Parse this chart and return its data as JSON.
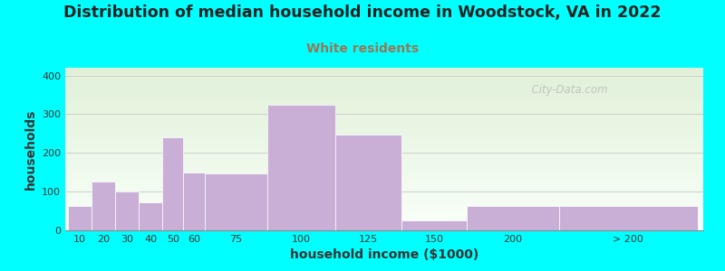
{
  "title": "Distribution of median household income in Woodstock, VA in 2022",
  "subtitle": "White residents",
  "xlabel": "household income ($1000)",
  "ylabel": "households",
  "background_color": "#00FFFF",
  "plot_bg_gradient_top": "#e0f0d8",
  "plot_bg_gradient_bottom": "#f8fff8",
  "bar_color": "#c9aed6",
  "title_fontsize": 12.5,
  "subtitle_fontsize": 10,
  "subtitle_color": "#997755",
  "watermark": "  City-Data.com",
  "categories": [
    "10",
    "20",
    "30",
    "40",
    "50",
    "60",
    "75",
    "100",
    "125",
    "150",
    "200",
    "> 200"
  ],
  "values": [
    62,
    125,
    100,
    72,
    240,
    150,
    148,
    325,
    247,
    25,
    62,
    62
  ],
  "ylim": [
    0,
    420
  ],
  "yticks": [
    0,
    100,
    200,
    300,
    400
  ],
  "bar_lefts": [
    5,
    14,
    23,
    32,
    41,
    49,
    57,
    81,
    107,
    132,
    157,
    192
  ],
  "bar_rights": [
    14,
    23,
    32,
    41,
    49,
    57,
    81,
    107,
    132,
    157,
    192,
    245
  ],
  "xtick_positions": [
    9.5,
    18.5,
    27.5,
    36.5,
    45,
    53,
    69,
    94,
    119.5,
    144.5,
    174.5,
    218.5
  ],
  "xlim": [
    4,
    247
  ]
}
